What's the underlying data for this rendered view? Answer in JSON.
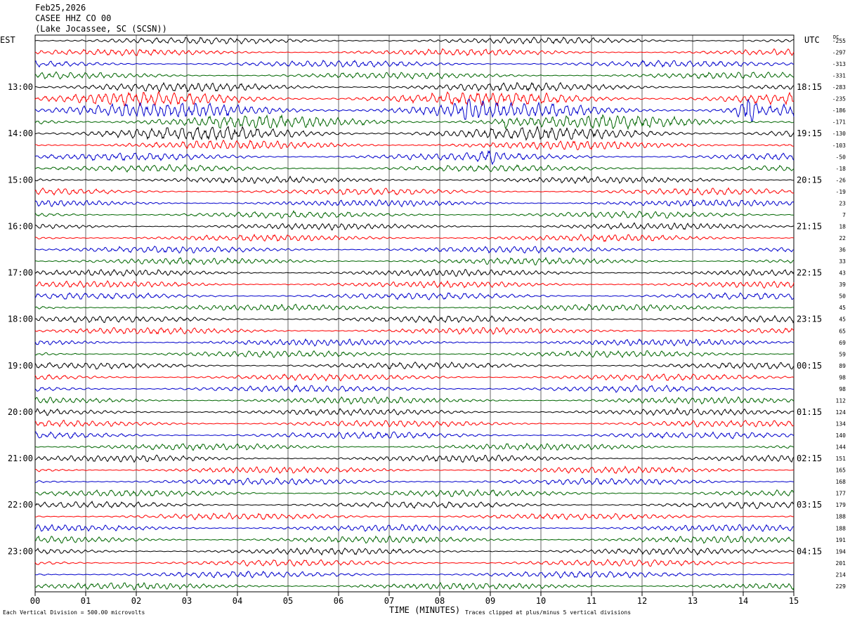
{
  "header": {
    "date": "Feb25,2026",
    "station": "CASEE HHZ CO 00",
    "location": "(Lake Jocassee, SC (SCSN))"
  },
  "corner_left": "EST",
  "corner_right": "UTC",
  "dc_label": "DC",
  "footer": {
    "scale_note": "Each Vertical Division =  500.00 microvolts",
    "clip_note": "Traces clipped at plus/minus 5 vertical divisions"
  },
  "colors": {
    "trace_cycle": [
      "#000000",
      "#ff0000",
      "#0000cc",
      "#006600"
    ],
    "grid": "#000000"
  },
  "chart_data": {
    "type": "line",
    "subtype": "helicorder seismogram",
    "xlabel": "TIME (MINUTES)",
    "x_ticks": [
      "00",
      "01",
      "02",
      "03",
      "04",
      "05",
      "06",
      "07",
      "08",
      "09",
      "10",
      "11",
      "12",
      "13",
      "14",
      "15"
    ],
    "xlim": [
      0,
      15
    ],
    "rows_per_hour": 4,
    "est_labels": [
      "13:00",
      "14:00",
      "15:00",
      "16:00",
      "17:00",
      "18:00",
      "19:00",
      "20:00",
      "21:00",
      "22:00",
      "23:00"
    ],
    "utc_labels": [
      "18:15",
      "19:15",
      "20:15",
      "21:15",
      "22:15",
      "23:15",
      "00:15",
      "01:15",
      "02:15",
      "03:15",
      "04:15"
    ],
    "dc_offsets": [
      "-255",
      "-297",
      "-313",
      "-331",
      "-283",
      "-235",
      "-186",
      "-171",
      "-130",
      "-103",
      "-50",
      "-18",
      "-26",
      "-19",
      "23",
      "7",
      "18",
      "22",
      "36",
      "33",
      "43",
      "39",
      "50",
      "45",
      "45",
      "65",
      "69",
      "59",
      "89",
      "98",
      "98",
      "112",
      "124",
      "134",
      "140",
      "144",
      "151",
      "165",
      "168",
      "177",
      "179",
      "188",
      "188",
      "191",
      "194",
      "201",
      "214",
      "229"
    ],
    "trace_amplitude": [
      3,
      3,
      3,
      3,
      4,
      6,
      7,
      6,
      6,
      4,
      3.5,
      3,
      3,
      3,
      3,
      3,
      3,
      3,
      3,
      3,
      3,
      3,
      3,
      3,
      3,
      3,
      3,
      3,
      3,
      3,
      3,
      3,
      3,
      3,
      3,
      3,
      3,
      3,
      3,
      3,
      3,
      3,
      3,
      3,
      3,
      3,
      3,
      3
    ],
    "events": [
      {
        "row": 6,
        "minute": 8.6,
        "amplitude": 14
      },
      {
        "row": 6,
        "minute": 14.1,
        "amplitude": 24
      },
      {
        "row": 7,
        "minute": 9.3,
        "amplitude": 9
      },
      {
        "row": 8,
        "minute": 3.8,
        "amplitude": 7
      },
      {
        "row": 10,
        "minute": 9.0,
        "amplitude": 9
      }
    ]
  }
}
